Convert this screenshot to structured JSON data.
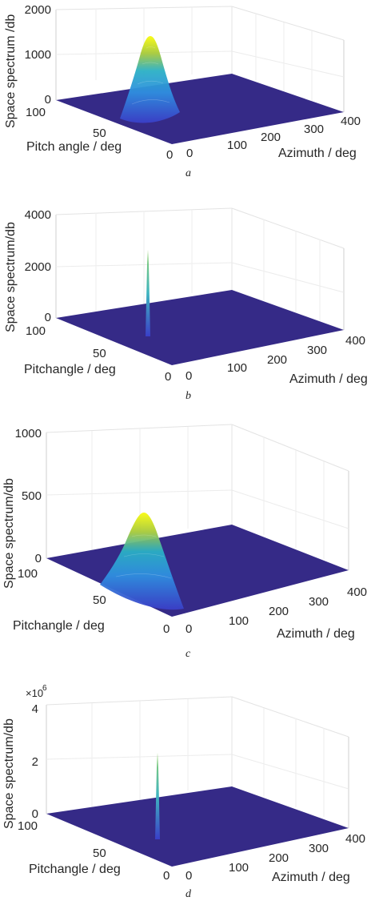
{
  "chart_data": [
    {
      "type": "surface",
      "caption": "a",
      "zlabel": "Space spectrum /db",
      "ylabel": "Pitch angle / deg",
      "xlabel": "Azimuth / deg",
      "z_ticks": [
        "0",
        "1000",
        "2000"
      ],
      "y_ticks": [
        "100",
        "50",
        "0"
      ],
      "x_ticks": [
        "0",
        "100",
        "200",
        "300",
        "400"
      ],
      "zlim": [
        0,
        2000
      ],
      "ylim": [
        0,
        100
      ],
      "xlim": [
        0,
        400
      ],
      "peak": {
        "azimuth": 60,
        "pitch": 30,
        "value": 1400
      },
      "exponent": ""
    },
    {
      "type": "surface",
      "caption": "b",
      "zlabel": "Space spectrum/db",
      "ylabel": "Pitchangle / deg",
      "xlabel": "Azimuth / deg",
      "z_ticks": [
        "0",
        "2000",
        "4000"
      ],
      "y_ticks": [
        "100",
        "50",
        "0"
      ],
      "x_ticks": [
        "0",
        "100",
        "200",
        "300",
        "400"
      ],
      "zlim": [
        0,
        4000
      ],
      "ylim": [
        0,
        100
      ],
      "xlim": [
        0,
        400
      ],
      "peak": {
        "azimuth": 60,
        "pitch": 30,
        "value": 2700
      },
      "exponent": ""
    },
    {
      "type": "surface",
      "caption": "c",
      "zlabel": "Space spectrum/db",
      "ylabel": "Pitchangle / deg",
      "xlabel": "Azimuth / deg",
      "z_ticks": [
        "0",
        "500",
        "1000"
      ],
      "y_ticks": [
        "100",
        "50",
        "0"
      ],
      "x_ticks": [
        "0",
        "100",
        "200",
        "300",
        "400"
      ],
      "zlim": [
        0,
        1000
      ],
      "ylim": [
        0,
        100
      ],
      "xlim": [
        0,
        400
      ],
      "peak": {
        "azimuth": 60,
        "pitch": 30,
        "value": 360
      },
      "exponent": ""
    },
    {
      "type": "surface",
      "caption": "d",
      "zlabel": "Space spectrum/db",
      "ylabel": "Pitchangle / deg",
      "xlabel": "Azimuth / deg",
      "z_ticks": [
        "0",
        "2",
        "4"
      ],
      "y_ticks": [
        "100",
        "50",
        "0"
      ],
      "x_ticks": [
        "0",
        "100",
        "200",
        "300",
        "400"
      ],
      "zlim": [
        0,
        4
      ],
      "ylim": [
        0,
        100
      ],
      "xlim": [
        0,
        400
      ],
      "peak": {
        "azimuth": 60,
        "pitch": 30,
        "value": 2.4
      },
      "exponent": "×10",
      "exponent_power": "6"
    }
  ],
  "colors": {
    "floor": "#352a87",
    "peak_top": "#f9fb0e",
    "peak_mid": "#2ab0c5",
    "peak_low": "#3a66d8",
    "grid": "#e3e3e3",
    "axis": "#262626"
  }
}
